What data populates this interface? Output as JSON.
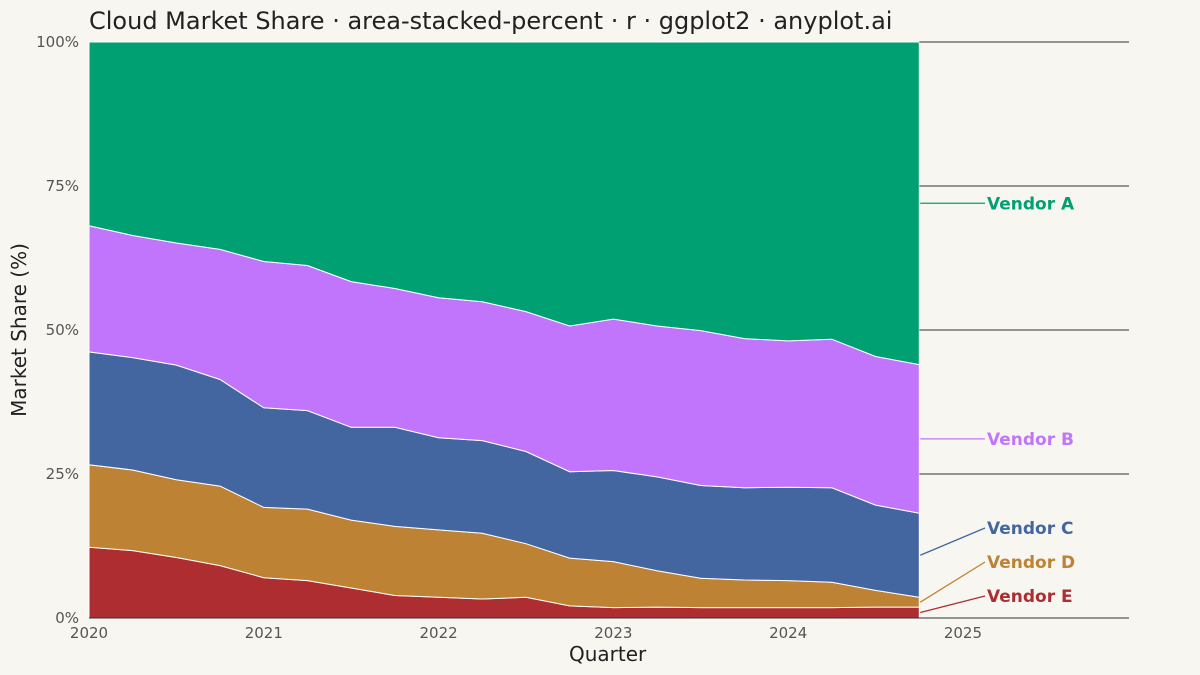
{
  "chart_data": {
    "type": "area",
    "stacked": "percent",
    "title": "Cloud Market Share · area-stacked-percent · r · ggplot2 · anyplot.ai",
    "xlabel": "Quarter",
    "ylabel": "Market Share (%)",
    "x_ticks": [
      "2020",
      "2021",
      "2022",
      "2023",
      "2024",
      "2025"
    ],
    "y_ticks": [
      "0%",
      "25%",
      "50%",
      "75%",
      "100%"
    ],
    "xlim": [
      2020.0,
      2025.95
    ],
    "ylim": [
      0,
      100
    ],
    "x": [
      2020.0,
      2020.25,
      2020.5,
      2020.75,
      2021.0,
      2021.25,
      2021.5,
      2021.75,
      2022.0,
      2022.25,
      2022.5,
      2022.75,
      2023.0,
      2023.25,
      2023.5,
      2023.75,
      2024.0,
      2024.25,
      2024.5,
      2024.75
    ],
    "series": [
      {
        "name": "Vendor E",
        "color": "#AE2D31",
        "values": [
          12.3,
          11.7,
          10.5,
          9.1,
          7.0,
          6.5,
          5.2,
          3.9,
          3.6,
          3.3,
          3.6,
          2.1,
          1.8,
          1.9,
          1.8,
          1.8,
          1.8,
          1.8,
          1.9,
          1.9
        ]
      },
      {
        "name": "Vendor D",
        "color": "#BE8234",
        "values": [
          14.3,
          14.0,
          13.5,
          13.8,
          12.2,
          12.4,
          11.8,
          12.0,
          11.7,
          11.4,
          9.3,
          8.3,
          8.0,
          6.3,
          5.1,
          4.8,
          4.7,
          4.4,
          2.9,
          1.7
        ]
      },
      {
        "name": "Vendor C",
        "color": "#4366A1",
        "values": [
          19.6,
          19.5,
          19.9,
          18.5,
          17.3,
          17.1,
          16.1,
          17.2,
          16.0,
          16.1,
          16.0,
          15.0,
          15.8,
          16.3,
          16.1,
          16.0,
          16.2,
          16.4,
          14.8,
          14.6
        ]
      },
      {
        "name": "Vendor B",
        "color": "#C075FC",
        "values": [
          21.9,
          21.2,
          21.2,
          22.6,
          25.4,
          25.2,
          25.3,
          24.1,
          24.3,
          24.1,
          24.3,
          25.3,
          26.3,
          26.2,
          26.9,
          25.9,
          25.4,
          25.8,
          25.8,
          25.8
        ]
      },
      {
        "name": "Vendor A",
        "color": "#01A072",
        "values": [
          31.9,
          33.6,
          34.9,
          36.0,
          38.1,
          38.8,
          41.6,
          42.8,
          44.4,
          45.1,
          46.8,
          49.3,
          48.1,
          49.3,
          50.1,
          51.5,
          51.9,
          51.6,
          54.6,
          56.0
        ]
      }
    ],
    "gridlines_y": [
      25,
      50,
      75,
      100
    ],
    "legend": "direct labels at right"
  }
}
